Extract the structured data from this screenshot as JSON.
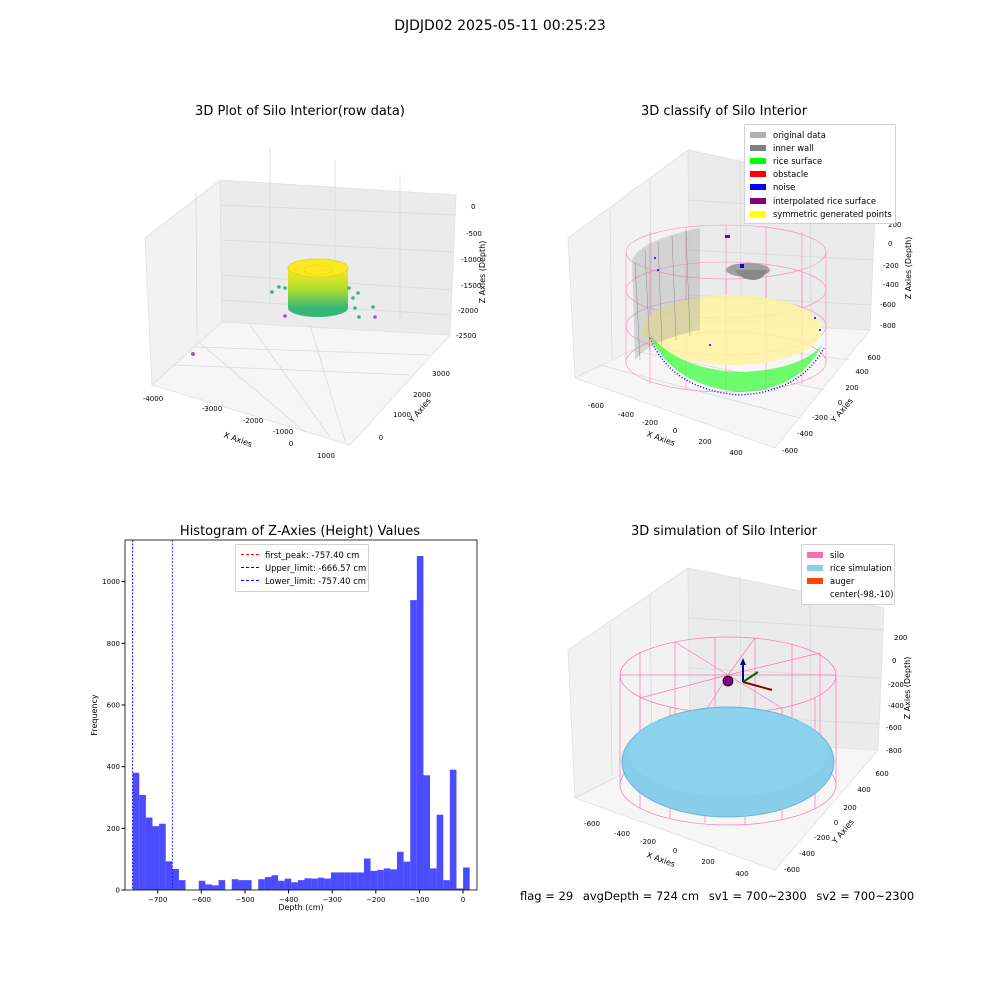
{
  "suptitle": "DJDJD02 2025-05-11 00:25:23",
  "chart_data": [
    {
      "type": "scatter",
      "title": "3D Plot of Silo Interior(row data)",
      "xlabel": "X Axies",
      "ylabel": "Y Axies",
      "zlabel": "Z Axies (Depth)",
      "x_ticks": [
        "-4000",
        "-3000",
        "-2000",
        "-1000",
        "0",
        "1000"
      ],
      "y_ticks": [
        "0",
        "1000",
        "2000",
        "3000"
      ],
      "z_ticks": [
        "0",
        "-500",
        "-1000",
        "-1500",
        "-2000",
        "-2500"
      ],
      "colormap": "viridis-to-yellow by depth"
    },
    {
      "type": "scatter",
      "title": "3D classify of Silo Interior",
      "xlabel": "X Axies",
      "ylabel": "Y Axies",
      "zlabel": "Z Axies (Depth)",
      "x_ticks": [
        "-600",
        "-400",
        "-200",
        "0",
        "200",
        "400"
      ],
      "y_ticks": [
        "-600",
        "-400",
        "-200",
        "0",
        "200",
        "400",
        "600"
      ],
      "z_ticks": [
        "200",
        "0",
        "-200",
        "-400",
        "-600",
        "-800"
      ],
      "legend": [
        {
          "label": "original data",
          "color": "#b0b0b0"
        },
        {
          "label": "inner wall",
          "color": "#808080"
        },
        {
          "label": "rice surface",
          "color": "#00ff00"
        },
        {
          "label": "obstacle",
          "color": "#ff0000"
        },
        {
          "label": "noise",
          "color": "#0000ff"
        },
        {
          "label": "interpolated rice surface",
          "color": "#800080"
        },
        {
          "label": "symmetric generated points",
          "color": "#ffff00"
        }
      ]
    },
    {
      "type": "bar",
      "title": "Histogram of Z-Axies (Height) Values",
      "xlabel": "Depth (cm)",
      "ylabel": "Frequency",
      "xlim": [
        -775,
        32
      ],
      "ylim": [
        0,
        1135
      ],
      "x_ticks": [
        -700,
        -600,
        -500,
        -400,
        -300,
        -200,
        -100,
        0
      ],
      "y_ticks": [
        0,
        200,
        400,
        600,
        800,
        1000
      ],
      "bar_color": "#0000ff",
      "bin_start": -757.4,
      "bin_width": 15.15,
      "values": [
        380,
        308,
        235,
        207,
        215,
        93,
        68,
        32,
        0,
        0,
        30,
        18,
        15,
        32,
        0,
        35,
        32,
        32,
        0,
        35,
        42,
        48,
        30,
        37,
        25,
        32,
        38,
        37,
        40,
        37,
        57,
        57,
        57,
        57,
        57,
        102,
        62,
        65,
        70,
        67,
        124,
        92,
        940,
        1083,
        372,
        70,
        244,
        32,
        390,
        5,
        73
      ],
      "lines": [
        {
          "label": "first_peak: -757.40 cm",
          "x": -757.4,
          "color": "#ff0000"
        },
        {
          "label": "Upper_limit: -666.57 cm",
          "x": -666.57,
          "color": "#0000ff"
        },
        {
          "label": "Lower_limit: -757.40 cm",
          "x": -757.4,
          "color": "#0000ff"
        }
      ]
    },
    {
      "type": "scatter",
      "title": "3D simulation of Silo Interior",
      "xlabel": "X Axies",
      "ylabel": "Y Axies",
      "zlabel": "Z Axies (Depth)",
      "x_ticks": [
        "-600",
        "-400",
        "-200",
        "0",
        "200",
        "400"
      ],
      "y_ticks": [
        "-600",
        "-400",
        "-200",
        "0",
        "200",
        "400",
        "600"
      ],
      "z_ticks": [
        "200",
        "0",
        "-200",
        "-400",
        "-600",
        "-800"
      ],
      "legend": [
        {
          "label": "silo",
          "color": "#ff69b4"
        },
        {
          "label": "rice simulation",
          "color": "#87ceeb"
        },
        {
          "label": "auger",
          "color": "#ff4500"
        },
        {
          "label": "center(-98,-10)",
          "color": ""
        }
      ]
    }
  ],
  "footer": {
    "flag": "flag = 29",
    "avg": "avgDepth = 724 cm",
    "sv1": "sv1 = 700~2300",
    "sv2": "sv2 = 700~2300"
  }
}
